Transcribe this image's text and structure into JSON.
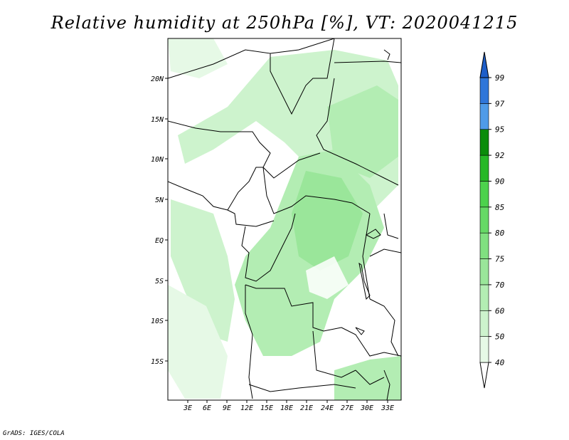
{
  "title": "Relative humidity at 250hPa [%], VT: 2020041215",
  "credit": "GrADS: IGES/COLA",
  "map": {
    "lon_labels": [
      "3E",
      "6E",
      "9E",
      "12E",
      "15E",
      "18E",
      "21E",
      "24E",
      "27E",
      "30E",
      "33E"
    ],
    "lat_labels": [
      "20N",
      "15N",
      "10N",
      "5N",
      "EQ",
      "5S",
      "10S",
      "15S"
    ]
  },
  "colorbar": {
    "levels": [
      "40",
      "50",
      "60",
      "70",
      "75",
      "80",
      "85",
      "90",
      "92",
      "95",
      "97",
      "99"
    ],
    "colors": [
      "#ffffff",
      "#e6f9e6",
      "#cdf3cd",
      "#b3edb3",
      "#9ae69a",
      "#80e080",
      "#66d966",
      "#4dd24d",
      "#26b826",
      "#0a8c0a",
      "#4f9be8",
      "#2f76d9",
      "#1e5ec8"
    ]
  }
}
